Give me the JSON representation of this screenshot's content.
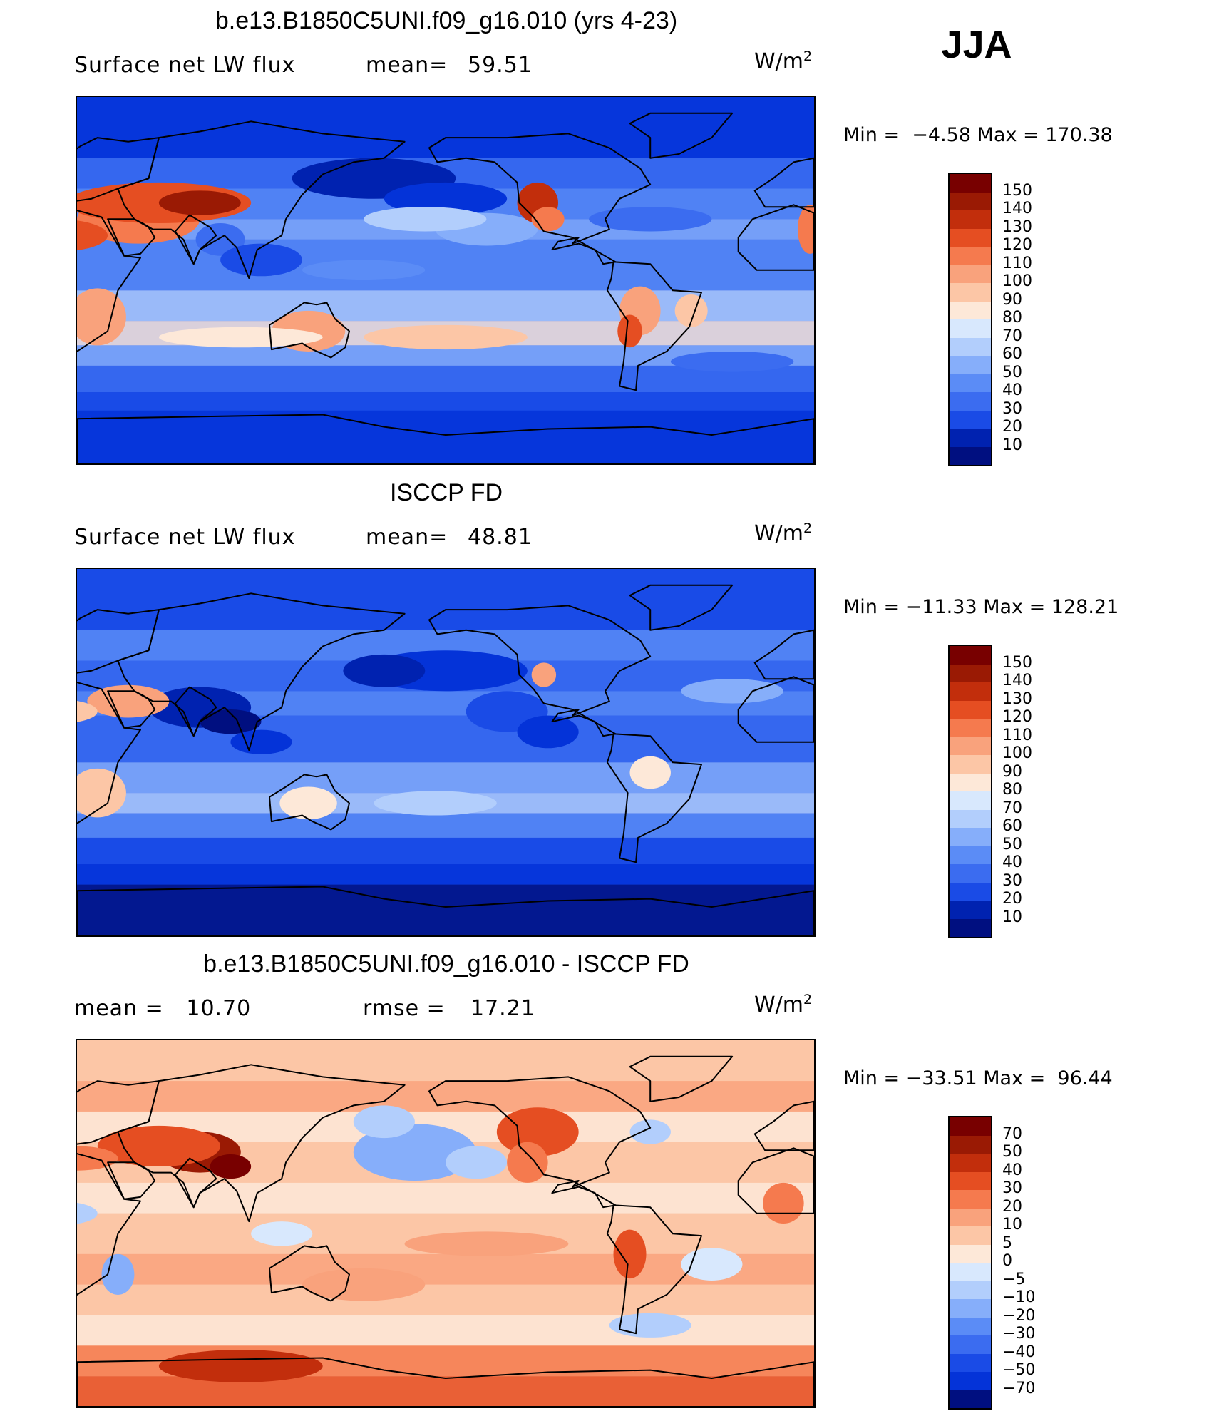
{
  "season": "JJA",
  "panels": [
    {
      "title": "b.e13.B1850C5UNI.f09_g16.010 (yrs 4-23)",
      "left_label": "Surface net LW flux",
      "mid_label": "mean=",
      "mid_value": "59.51",
      "units_base": "W/m",
      "units_sup": "2",
      "min_text": "Min =  −4.58 Max = 170.38",
      "colorbar_labels": [
        "150",
        "140",
        "130",
        "120",
        "110",
        "100",
        "90",
        "80",
        "70",
        "60",
        "50",
        "40",
        "30",
        "20",
        "10"
      ],
      "map_type": "model"
    },
    {
      "title": "ISCCP FD",
      "left_label": "Surface net LW flux",
      "mid_label": "mean=",
      "mid_value": "48.81",
      "units_base": "W/m",
      "units_sup": "2",
      "min_text": "Min = −11.33 Max = 128.21",
      "colorbar_labels": [
        "150",
        "140",
        "130",
        "120",
        "110",
        "100",
        "90",
        "80",
        "70",
        "60",
        "50",
        "40",
        "30",
        "20",
        "10"
      ],
      "map_type": "obs"
    },
    {
      "title": "b.e13.B1850C5UNI.f09_g16.010 - ISCCP FD",
      "left_label": "mean =   10.70",
      "mid_label": "rmse =",
      "mid_value": "17.21",
      "units_base": "W/m",
      "units_sup": "2",
      "min_text": "Min = −33.51 Max =  96.44",
      "colorbar_labels": [
        "70",
        "50",
        "40",
        "30",
        "20",
        "10",
        "5",
        "0",
        "−5",
        "−10",
        "−20",
        "−30",
        "−40",
        "−50",
        "−70"
      ],
      "map_type": "diff"
    }
  ],
  "colors": {
    "scale": [
      "#000f80",
      "#0022b0",
      "#0433d8",
      "#1a4be6",
      "#3b6cf0",
      "#5b8cf6",
      "#86aefa",
      "#b2cefc",
      "#d8e8fd",
      "#fde8d8",
      "#fcc6a6",
      "#f9a27c",
      "#f57a4e",
      "#e54e22",
      "#c22e0c",
      "#9a1a04",
      "#780000"
    ],
    "land_outline": "#000000"
  }
}
